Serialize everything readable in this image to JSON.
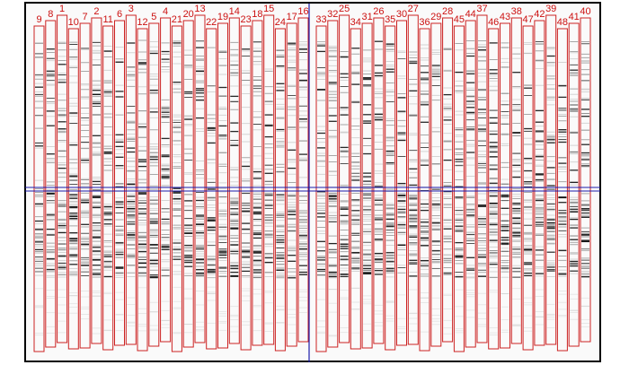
{
  "colors": {
    "frame": "#000000",
    "lane_outline": "#cc2222",
    "lane_label": "#cc1111",
    "crosshair": "#1a1aaa",
    "band": "#111111"
  },
  "crosshair": {
    "vertical_between_lanes": [
      "16",
      "33"
    ],
    "horizontal_level": 0.495
  },
  "lanes": [
    {
      "label": "9"
    },
    {
      "label": "8"
    },
    {
      "label": "1"
    },
    {
      "label": "10"
    },
    {
      "label": "7"
    },
    {
      "label": "2"
    },
    {
      "label": "11"
    },
    {
      "label": "6"
    },
    {
      "label": "3"
    },
    {
      "label": "12"
    },
    {
      "label": "5"
    },
    {
      "label": "4"
    },
    {
      "label": "21"
    },
    {
      "label": "20"
    },
    {
      "label": "13"
    },
    {
      "label": "22"
    },
    {
      "label": "19"
    },
    {
      "label": "14"
    },
    {
      "label": "23"
    },
    {
      "label": "18"
    },
    {
      "label": "15"
    },
    {
      "label": "24"
    },
    {
      "label": "17"
    },
    {
      "label": "16"
    },
    {
      "label": "33"
    },
    {
      "label": "32"
    },
    {
      "label": "25"
    },
    {
      "label": "34"
    },
    {
      "label": "31"
    },
    {
      "label": "26"
    },
    {
      "label": "35"
    },
    {
      "label": "30"
    },
    {
      "label": "27"
    },
    {
      "label": "36"
    },
    {
      "label": "29"
    },
    {
      "label": "28"
    },
    {
      "label": "45"
    },
    {
      "label": "44"
    },
    {
      "label": "37"
    },
    {
      "label": "46"
    },
    {
      "label": "43"
    },
    {
      "label": "38"
    },
    {
      "label": "47"
    },
    {
      "label": "42"
    },
    {
      "label": "39"
    },
    {
      "label": "48"
    },
    {
      "label": "41"
    },
    {
      "label": "40"
    }
  ]
}
